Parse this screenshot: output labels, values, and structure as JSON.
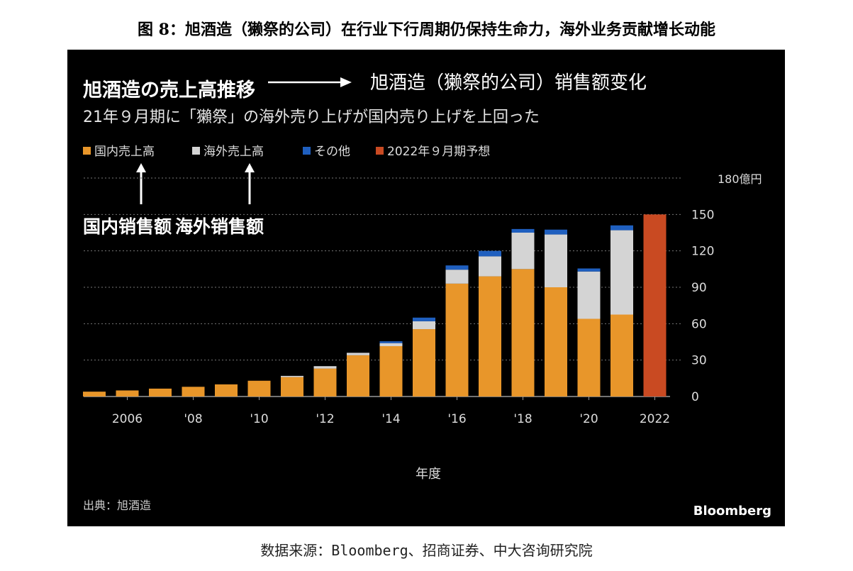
{
  "figure_title": "图 8：旭酒造（獭祭的公司）在行业下行周期仍保持生命力，海外业务贡献增长动能",
  "source_note": "数据来源：Bloomberg、招商证券、中大咨询研究院",
  "chart_data": {
    "type": "bar",
    "stacked": true,
    "title": "旭酒造の売上高推移",
    "title_translation": "旭酒造（獭祭的公司）销售额变化",
    "subtitle": "21年９月期に「獺祭」の海外売り上げが国内売り上げを上回った",
    "legend_annotation": {
      "domestic": "国内销售额",
      "overseas": "海外销售额"
    },
    "xlabel": "年度",
    "ylabel": "",
    "unit_label": "180億円",
    "credit": "出典：旭酒造",
    "brand": "Bloomberg",
    "ylim": [
      0,
      180
    ],
    "grid": true,
    "legend_position": "top-left",
    "y_ticks": [
      "0",
      "30",
      "60",
      "90",
      "120",
      "150"
    ],
    "categories": [
      "2005",
      "2006",
      "2007",
      "2008",
      "2009",
      "2010",
      "2011",
      "2012",
      "2013",
      "2014",
      "2015",
      "2016",
      "2017",
      "2018",
      "2019",
      "2020",
      "2021",
      "2022"
    ],
    "x_tick_labels": {
      "2006": "2006",
      "2008": "'08",
      "2010": "'10",
      "2012": "'12",
      "2014": "'14",
      "2016": "'16",
      "2018": "'18",
      "2020": "'20",
      "2022": "2022"
    },
    "series": [
      {
        "name": "国内売上高",
        "color": "#e8962a",
        "values": [
          4,
          5,
          6.5,
          8,
          10,
          13,
          16,
          23,
          34,
          41.5,
          55.5,
          93,
          99,
          105,
          90,
          64,
          67.5,
          null
        ]
      },
      {
        "name": "海外売上高",
        "color": "#d4d4d4",
        "values": [
          0,
          0,
          0,
          0,
          0,
          0,
          1,
          2,
          2,
          2.5,
          6.5,
          11.5,
          16.5,
          30,
          43.5,
          39,
          69.5,
          null
        ]
      },
      {
        "name": "その他",
        "color": "#1f5fbf",
        "values": [
          0,
          0,
          0,
          0,
          0,
          0,
          0,
          0,
          0,
          1.5,
          3,
          3.5,
          4.5,
          3,
          4,
          2.5,
          4,
          null
        ]
      },
      {
        "name": "2022年９月期予想",
        "color": "#c94a22",
        "values": [
          null,
          null,
          null,
          null,
          null,
          null,
          null,
          null,
          null,
          null,
          null,
          null,
          null,
          null,
          null,
          null,
          null,
          150
        ]
      }
    ]
  }
}
